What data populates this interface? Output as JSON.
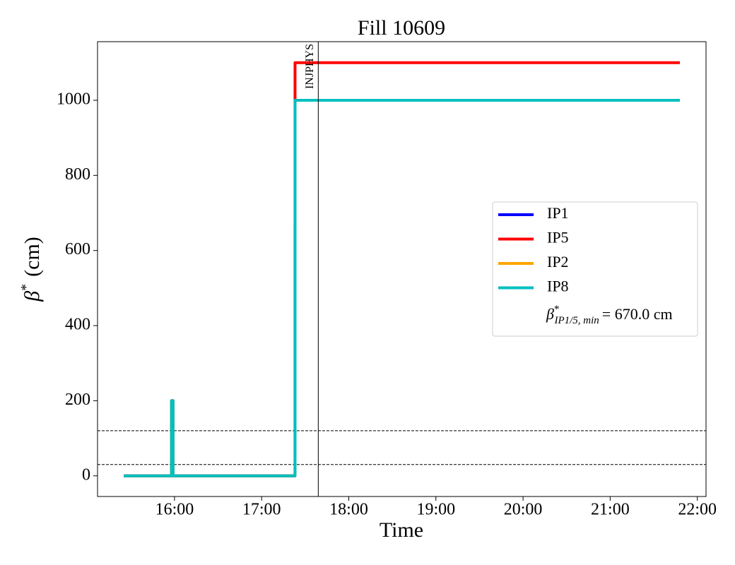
{
  "chart_data": {
    "type": "line",
    "title": "Fill 10609",
    "xlabel": "Time",
    "ylabel": {
      "symbol": "β",
      "sup": "*",
      "unit": "(cm)"
    },
    "x": [
      "15:25",
      "15:58",
      "15:58",
      "15:59",
      "15:59",
      "17:23",
      "17:23",
      "17:23",
      "21:48"
    ],
    "series": [
      {
        "name": "IP1",
        "color": "#0000ff",
        "values": [
          0,
          0,
          200,
          200,
          0,
          0,
          670,
          null,
          null
        ]
      },
      {
        "name": "IP5",
        "color": "#ff0000",
        "values": [
          0,
          0,
          200,
          200,
          0,
          0,
          1100,
          1100,
          1100
        ]
      },
      {
        "name": "IP2",
        "color": "#ffa500",
        "values": [
          0,
          0,
          200,
          200,
          0,
          0,
          670,
          null,
          null
        ]
      },
      {
        "name": "IP8",
        "color": "#00bfbf",
        "values": [
          0,
          0,
          200,
          200,
          0,
          0,
          1000,
          1000,
          1000
        ]
      }
    ],
    "legend_note": {
      "symbol": "β",
      "sup": "*",
      "sub": "IP1/5, min",
      "text": "= 670.0 cm"
    },
    "hlines": [
      120,
      30
    ],
    "vline": {
      "x": "17:39",
      "label": "INJPHYS"
    },
    "xlim": [
      "15:07",
      "22:06"
    ],
    "xticks": [
      "16:00",
      "17:00",
      "18:00",
      "19:00",
      "20:00",
      "21:00",
      "22:00"
    ],
    "ylim": [
      -55,
      1156
    ],
    "yticks": [
      0,
      200,
      400,
      600,
      800,
      1000
    ],
    "legend": "center right",
    "grid": false
  }
}
